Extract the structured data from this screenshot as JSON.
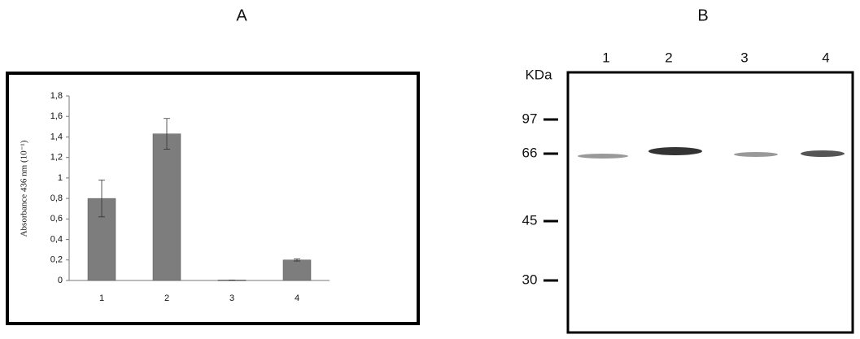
{
  "chart_data": {
    "type": "bar",
    "title": "A",
    "y_label": "Absorbance 436 nm (10⁻¹)",
    "categories": [
      "1",
      "2",
      "3",
      "4"
    ],
    "values": [
      0.8,
      1.43,
      0.005,
      0.2
    ],
    "errors": [
      0.18,
      0.15,
      0,
      0.01
    ],
    "color": "#7d7d7d",
    "ylim": [
      0,
      1.8
    ],
    "yticks": [
      0,
      {
        "value": 0.2,
        "label": "0,2"
      },
      {
        "value": 0.4,
        "label": "0,4"
      },
      {
        "value": 0.6,
        "label": "0,6"
      },
      {
        "value": 0.8,
        "label": "0,8"
      },
      1,
      {
        "value": 1.2,
        "label": "1,2"
      },
      {
        "value": 1.4,
        "label": "1,4"
      },
      {
        "value": 1.6,
        "label": "1,6"
      },
      {
        "value": 1.8,
        "label": "1,8"
      }
    ]
  },
  "blot": {
    "title": "B",
    "unit": "KDa",
    "lanes": [
      "1",
      "2",
      "3",
      "4"
    ],
    "markers": [
      97,
      66,
      45,
      30
    ]
  }
}
